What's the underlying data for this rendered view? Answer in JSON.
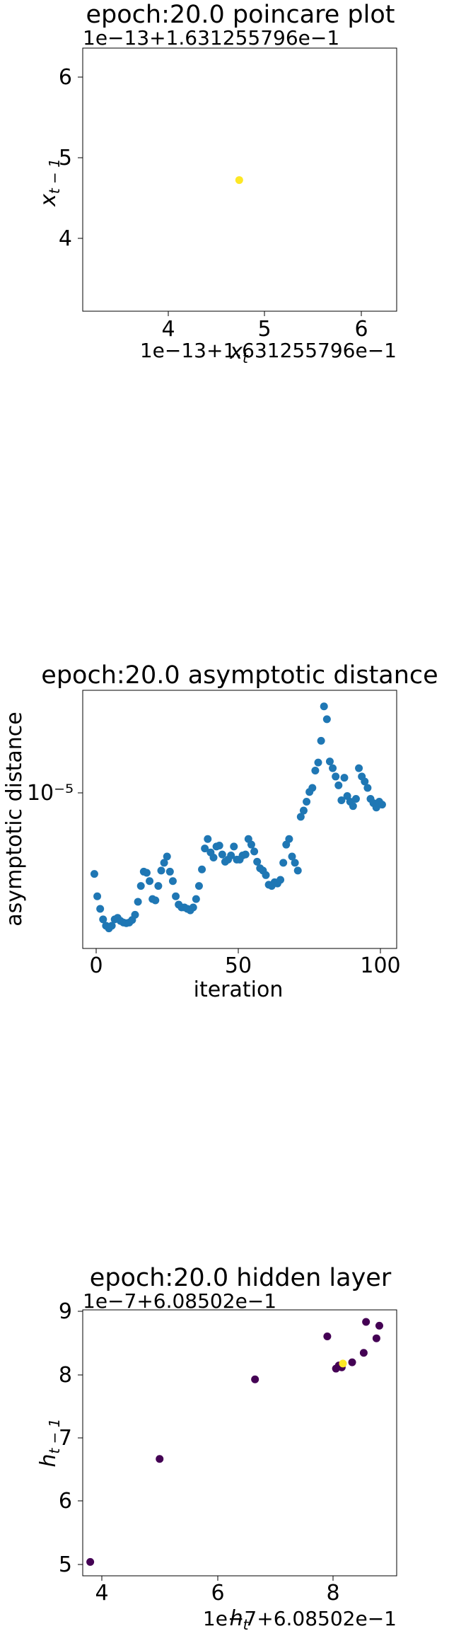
{
  "chart_data": [
    {
      "type": "scatter",
      "title": "epoch:20.0 poincare plot",
      "xlabel": "x_t",
      "ylabel": "x_{t-1}",
      "xlim": [
        3.1,
        6.35
      ],
      "ylim": [
        3.1,
        6.35
      ],
      "xticks": [
        "4",
        "5",
        "6"
      ],
      "yticks": [
        "4",
        "5",
        "6"
      ],
      "x_offset_text": "1e−13+1.631255796e−1",
      "y_offset_text": "1e−13+1.631255796e−1",
      "points": [
        {
          "x": 4.72,
          "y": 4.72,
          "color": "#fde725"
        }
      ]
    },
    {
      "type": "scatter",
      "title": "epoch:20.0 asymptotic distance",
      "xlabel": "iteration",
      "ylabel": "asymptotic distance",
      "xlim": [
        -4,
        104
      ],
      "yscale": "log",
      "ylim": [
        4.05e-06,
        2.2e-05
      ],
      "xticks": [
        "0",
        "50",
        "100"
      ],
      "yticks": [
        "10⁻⁵"
      ],
      "color": "#1f77b4",
      "x": [
        0,
        1,
        2,
        3,
        4,
        5,
        6,
        7,
        8,
        9,
        10,
        11,
        12,
        13,
        14,
        15,
        16,
        17,
        18,
        19,
        20,
        21,
        22,
        23,
        24,
        25,
        26,
        27,
        28,
        29,
        30,
        31,
        32,
        33,
        34,
        35,
        36,
        37,
        38,
        39,
        40,
        41,
        42,
        43,
        44,
        45,
        46,
        47,
        48,
        49,
        50,
        51,
        52,
        53,
        54,
        55,
        56,
        57,
        58,
        59,
        60,
        61,
        62,
        63,
        64,
        65,
        66,
        67,
        68,
        69,
        70,
        71,
        72,
        73,
        74,
        75,
        76,
        77,
        78,
        79,
        80,
        81,
        82,
        83,
        84,
        85,
        86,
        87,
        88,
        89,
        90,
        91,
        92,
        93,
        94,
        95,
        96,
        97,
        98,
        99
      ],
      "y": [
        6.6e-06,
        5.7e-06,
        5.25e-06,
        4.9e-06,
        4.7e-06,
        4.62e-06,
        4.7e-06,
        4.9e-06,
        4.95e-06,
        4.85e-06,
        4.8e-06,
        4.78e-06,
        4.8e-06,
        4.88e-06,
        5.05e-06,
        5.5e-06,
        6.1e-06,
        6.7e-06,
        6.65e-06,
        6.3e-06,
        5.6e-06,
        5.55e-06,
        6.1e-06,
        6.75e-06,
        7.1e-06,
        7.4e-06,
        6.7e-06,
        6.3e-06,
        5.7e-06,
        5.4e-06,
        5.3e-06,
        5.3e-06,
        5.25e-06,
        5.2e-06,
        5.3e-06,
        5.6e-06,
        6.1e-06,
        6.8e-06,
        7.8e-06,
        8.3e-06,
        7.6e-06,
        7.35e-06,
        7.9e-06,
        7.95e-06,
        7.5e-06,
        7.15e-06,
        7.25e-06,
        7.45e-06,
        7.9e-06,
        7.25e-06,
        7.25e-06,
        7.45e-06,
        7.5e-06,
        8.3e-06,
        8e-06,
        7.65e-06,
        7.15e-06,
        6.85e-06,
        6.75e-06,
        6.55e-06,
        6.15e-06,
        6.1e-06,
        6.25e-06,
        6.2e-06,
        6.35e-06,
        7.1e-06,
        8e-06,
        8.3e-06,
        7.4e-06,
        7.1e-06,
        6.75e-06,
        9.6e-06,
        1e-05,
        1.06e-05,
        1.13e-05,
        1.16e-05,
        1.3e-05,
        1.37e-05,
        1.58e-05,
        1.98e-05,
        1.82e-05,
        1.38e-05,
        1.32e-05,
        1.25e-05,
        1.18e-05,
        1.07e-05,
        1.24e-05,
        1.1e-05,
        1.06e-05,
        1.03e-05,
        1.08e-05,
        1.32e-05,
        1.25e-05,
        1.21e-05,
        1.16e-05,
        1.08e-05,
        1.05e-05,
        1.02e-05,
        1.06e-05,
        1.04e-05
      ]
    },
    {
      "type": "scatter",
      "title": "epoch:20.0 hidden layer",
      "xlabel": "h_t",
      "ylabel": "h_{t-1}",
      "xlim": [
        3.72,
        9.15
      ],
      "ylim": [
        4.82,
        9.03
      ],
      "xticks": [
        "4",
        "6",
        "8"
      ],
      "yticks": [
        "5",
        "6",
        "7",
        "8",
        "9"
      ],
      "x_offset_text": "1e−7+6.08502e−1",
      "y_offset_text": "1e−7+6.08502e−1",
      "colormap": [
        "#440154",
        "#fde725"
      ],
      "points": [
        {
          "x": 3.85,
          "y": 5.04,
          "color": "#440154"
        },
        {
          "x": 5.05,
          "y": 6.67,
          "color": "#440154"
        },
        {
          "x": 6.7,
          "y": 7.93,
          "color": "#440154"
        },
        {
          "x": 7.95,
          "y": 8.61,
          "color": "#440154"
        },
        {
          "x": 8.1,
          "y": 8.1,
          "color": "#440154"
        },
        {
          "x": 8.15,
          "y": 8.15,
          "color": "#440154"
        },
        {
          "x": 8.2,
          "y": 8.12,
          "color": "#440154"
        },
        {
          "x": 8.38,
          "y": 8.2,
          "color": "#440154"
        },
        {
          "x": 8.58,
          "y": 8.35,
          "color": "#440154"
        },
        {
          "x": 8.62,
          "y": 8.84,
          "color": "#440154"
        },
        {
          "x": 8.8,
          "y": 8.58,
          "color": "#440154"
        },
        {
          "x": 8.85,
          "y": 8.78,
          "color": "#440154"
        },
        {
          "x": 8.22,
          "y": 8.18,
          "color": "#fde725"
        }
      ]
    }
  ]
}
